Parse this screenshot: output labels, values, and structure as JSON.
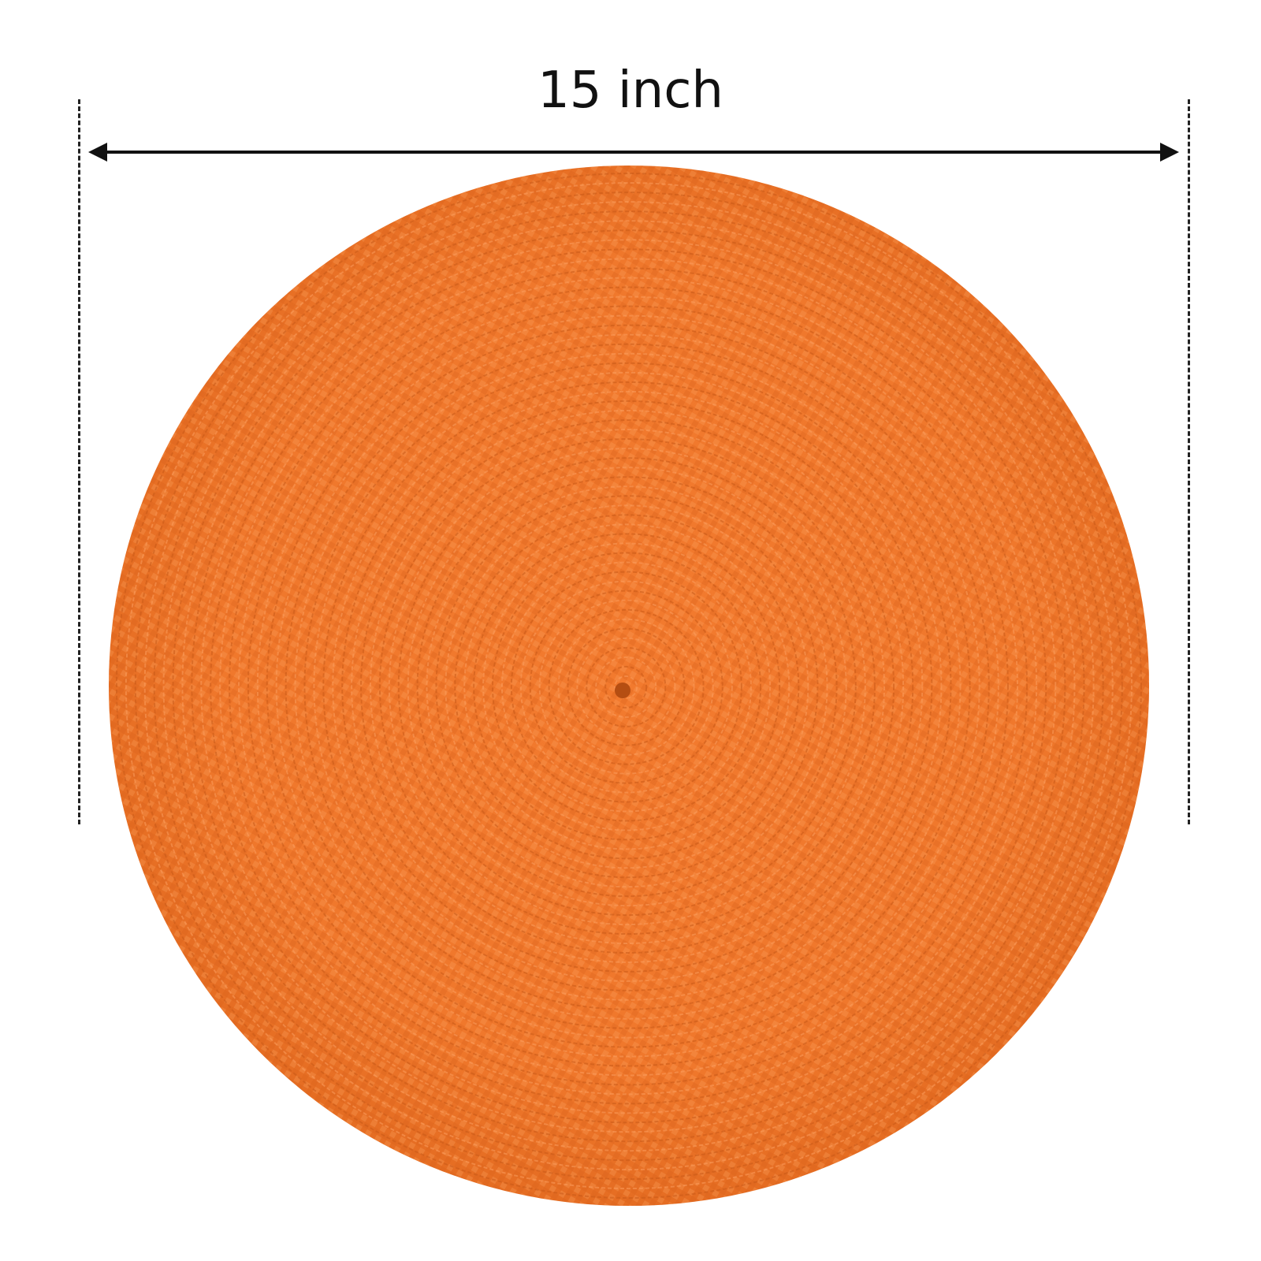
{
  "dimension": {
    "label": "15 inch"
  },
  "product": {
    "colors": {
      "mat_base": "#f0782c",
      "mat_dark": "#d9621c",
      "mat_light": "#f89a55",
      "background": "#ffffff",
      "annotation": "#111111"
    }
  }
}
